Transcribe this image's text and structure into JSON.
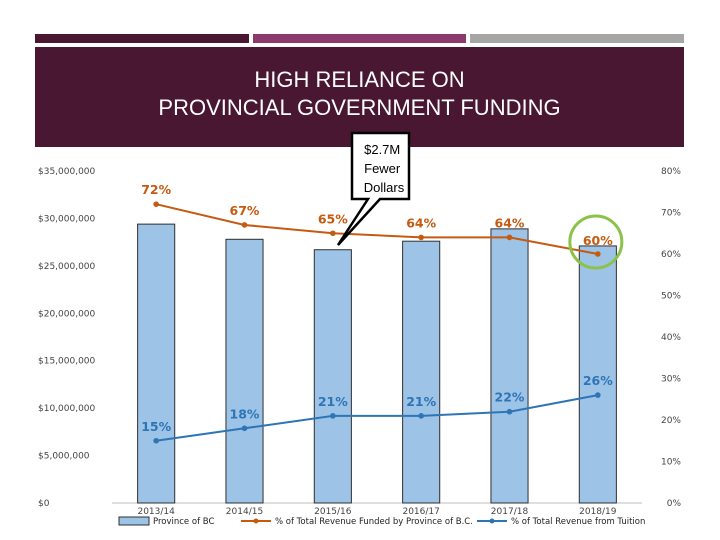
{
  "slide": {
    "title_line1": "HIGH RELIANCE ON",
    "title_line2": "PROVINCIAL GOVERNMENT FUNDING",
    "colors": {
      "banner": "#4a1733",
      "accent_bar_1": "#4a1733",
      "accent_bar_2": "#8b3a6b",
      "accent_bar_3": "#a6a6a6"
    }
  },
  "callout": {
    "lines": [
      "$2.7M",
      "Fewer",
      "Dollars"
    ]
  },
  "chart_data": {
    "type": "bar",
    "categories": [
      "2013/14",
      "2014/15",
      "2015/16",
      "2016/17",
      "2017/18",
      "2018/19"
    ],
    "y_left": {
      "min": 0,
      "max": 35000000,
      "ticks": [
        "$0",
        "$5,000,000",
        "$10,000,000",
        "$15,000,000",
        "$20,000,000",
        "$25,000,000",
        "$30,000,000",
        "$35,000,000"
      ]
    },
    "y_right": {
      "min": 0,
      "max": 80,
      "ticks": [
        "0%",
        "10%",
        "20%",
        "30%",
        "40%",
        "50%",
        "60%",
        "70%",
        "80%"
      ]
    },
    "series": [
      {
        "name": "Province of BC",
        "kind": "bar",
        "axis": "left",
        "color": "#9dc3e6",
        "values": [
          29400000,
          27800000,
          26700000,
          27600000,
          28900000,
          27100000
        ]
      },
      {
        "name": "% of Total Revenue Funded by Province of B.C.",
        "kind": "line",
        "axis": "right",
        "color": "#c55a11",
        "values": [
          72,
          67,
          65,
          64,
          64,
          60
        ],
        "labels": [
          "72%",
          "67%",
          "65%",
          "64%",
          "64%",
          "60%"
        ]
      },
      {
        "name": "% of Total Revenue from Tuition",
        "kind": "line",
        "axis": "right",
        "color": "#2e75b6",
        "values": [
          15,
          18,
          21,
          21,
          22,
          26
        ],
        "labels": [
          "15%",
          "18%",
          "21%",
          "21%",
          "22%",
          "26%"
        ]
      }
    ],
    "highlight": {
      "category": "2018/19",
      "series": "% of Total Revenue Funded by Province of B.C.",
      "color": "#8bc34a"
    },
    "grid": false,
    "legend_position": "bottom"
  }
}
